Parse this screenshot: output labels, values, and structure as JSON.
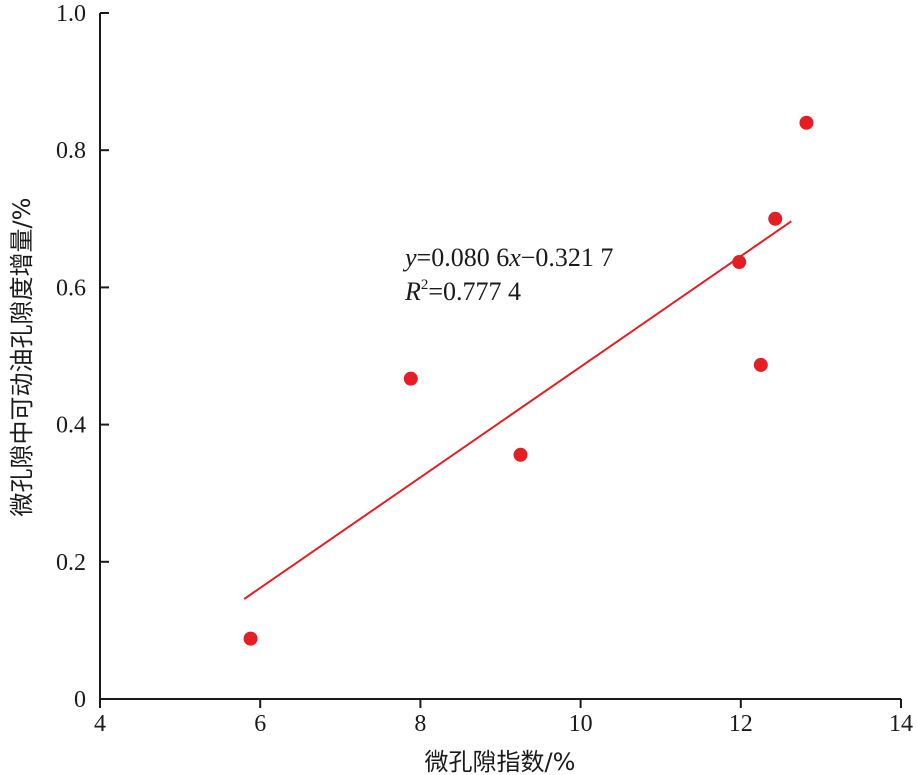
{
  "chart_data": {
    "type": "scatter",
    "xlabel": "微孔隙指数/%",
    "ylabel": "微孔隙中可动油孔隙度增量/%",
    "xlim": [
      4,
      14
    ],
    "ylim": [
      0,
      1.0
    ],
    "x_ticks": [
      4,
      6,
      8,
      10,
      12,
      14
    ],
    "y_ticks": [
      0,
      0.2,
      0.4,
      0.6,
      0.8,
      1.0
    ],
    "x_tick_labels": [
      "4",
      "6",
      "8",
      "10",
      "12",
      "14"
    ],
    "y_tick_labels": [
      "0",
      "0.2",
      "0.4",
      "0.6",
      "0.8",
      "1.0"
    ],
    "grid": false,
    "marker_color": "#e31e24",
    "line_color": "#e31e24",
    "points": [
      {
        "x": 5.88,
        "y": 0.088
      },
      {
        "x": 7.88,
        "y": 0.467
      },
      {
        "x": 9.25,
        "y": 0.356
      },
      {
        "x": 11.98,
        "y": 0.637
      },
      {
        "x": 12.25,
        "y": 0.487
      },
      {
        "x": 12.43,
        "y": 0.7
      },
      {
        "x": 12.82,
        "y": 0.84
      }
    ],
    "fit": {
      "slope": 0.0806,
      "intercept": -0.3217,
      "x_range": [
        5.8,
        12.63
      ]
    },
    "annotation": {
      "equation_var_y": "y",
      "equation_mid": "=0.080 6",
      "equation_var_x": "x",
      "equation_end": "−0.321 7",
      "r2_var": "R",
      "r2_sup": "2",
      "r2_value": "=0.777 4"
    }
  }
}
